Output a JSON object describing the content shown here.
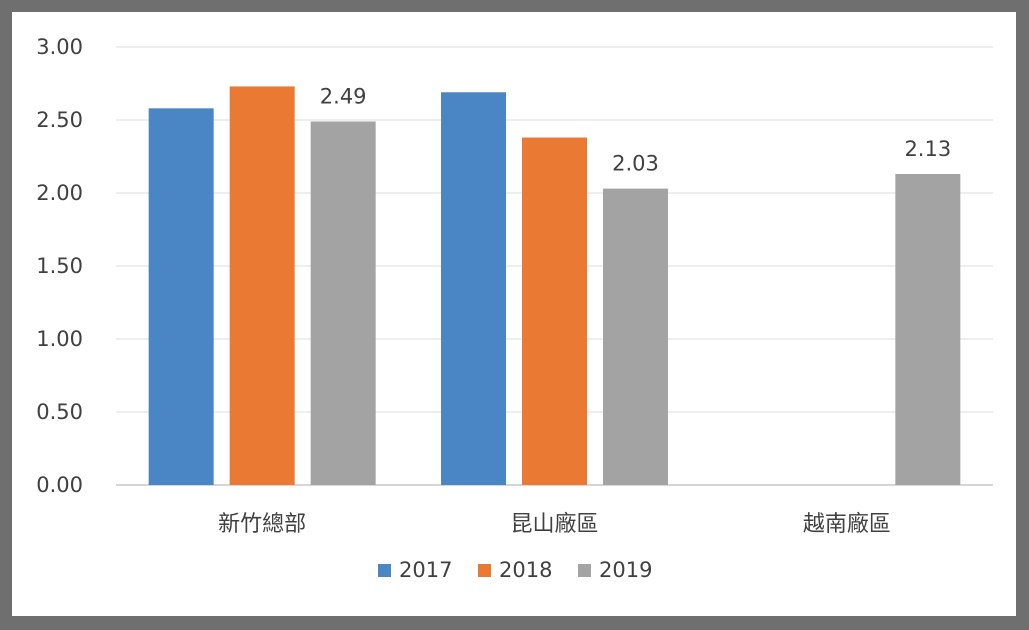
{
  "chart_data": {
    "type": "bar",
    "title": "",
    "xlabel": "",
    "ylabel": "",
    "categories": [
      "新竹總部",
      "昆山廠區",
      "越南廠區"
    ],
    "series": [
      {
        "name": "2017",
        "color": "#4a86c6",
        "values": [
          2.58,
          2.69,
          null
        ]
      },
      {
        "name": "2018",
        "color": "#ea7a33",
        "values": [
          2.73,
          2.38,
          null
        ]
      },
      {
        "name": "2019",
        "color": "#a3a3a3",
        "values": [
          2.49,
          2.03,
          2.13
        ]
      }
    ],
    "data_labels": [
      {
        "series": "2019",
        "category": "新竹總部",
        "text": "2.49"
      },
      {
        "series": "2019",
        "category": "昆山廠區",
        "text": "2.03"
      },
      {
        "series": "2019",
        "category": "越南廠區",
        "text": "2.13"
      }
    ],
    "ylim": [
      0,
      3
    ],
    "yticks": [
      "0.00",
      "0.50",
      "1.00",
      "1.50",
      "2.00",
      "2.50",
      "3.00"
    ],
    "grid": true,
    "legend_position": "bottom"
  }
}
